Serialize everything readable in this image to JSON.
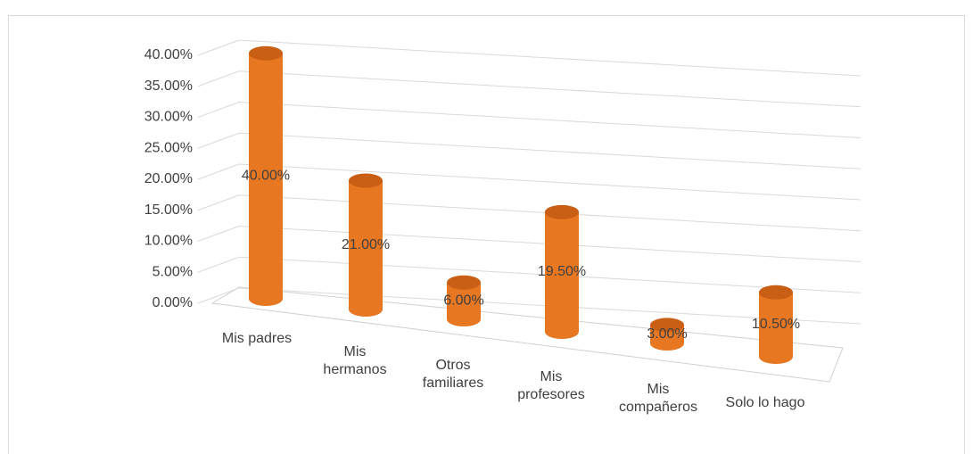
{
  "chart_data": {
    "type": "bar3d",
    "categories": [
      "Mis padres",
      "Mis\nhermanos",
      "Otros\nfamiliares",
      "Mis\nprofesores",
      "Mis\ncompañeros",
      "Solo lo hago"
    ],
    "values": [
      40,
      21,
      6,
      19.5,
      3,
      10.5
    ],
    "value_labels": [
      "40.00%",
      "21.00%",
      "6.00%",
      "19.50%",
      "3.00%",
      "10.50%"
    ],
    "color": "#e87722",
    "ylim": [
      0,
      40
    ],
    "yticks": [
      {
        "value": 0,
        "label": "0.00%"
      },
      {
        "value": 5,
        "label": "5.00%"
      },
      {
        "value": 10,
        "label": "10.00%"
      },
      {
        "value": 15,
        "label": "15.00%"
      },
      {
        "value": 20,
        "label": "20.00%"
      },
      {
        "value": 25,
        "label": "25.00%"
      },
      {
        "value": 30,
        "label": "30.00%"
      },
      {
        "value": 35,
        "label": "35.00%"
      },
      {
        "value": 40,
        "label": "40.00%"
      }
    ],
    "grid": true
  }
}
